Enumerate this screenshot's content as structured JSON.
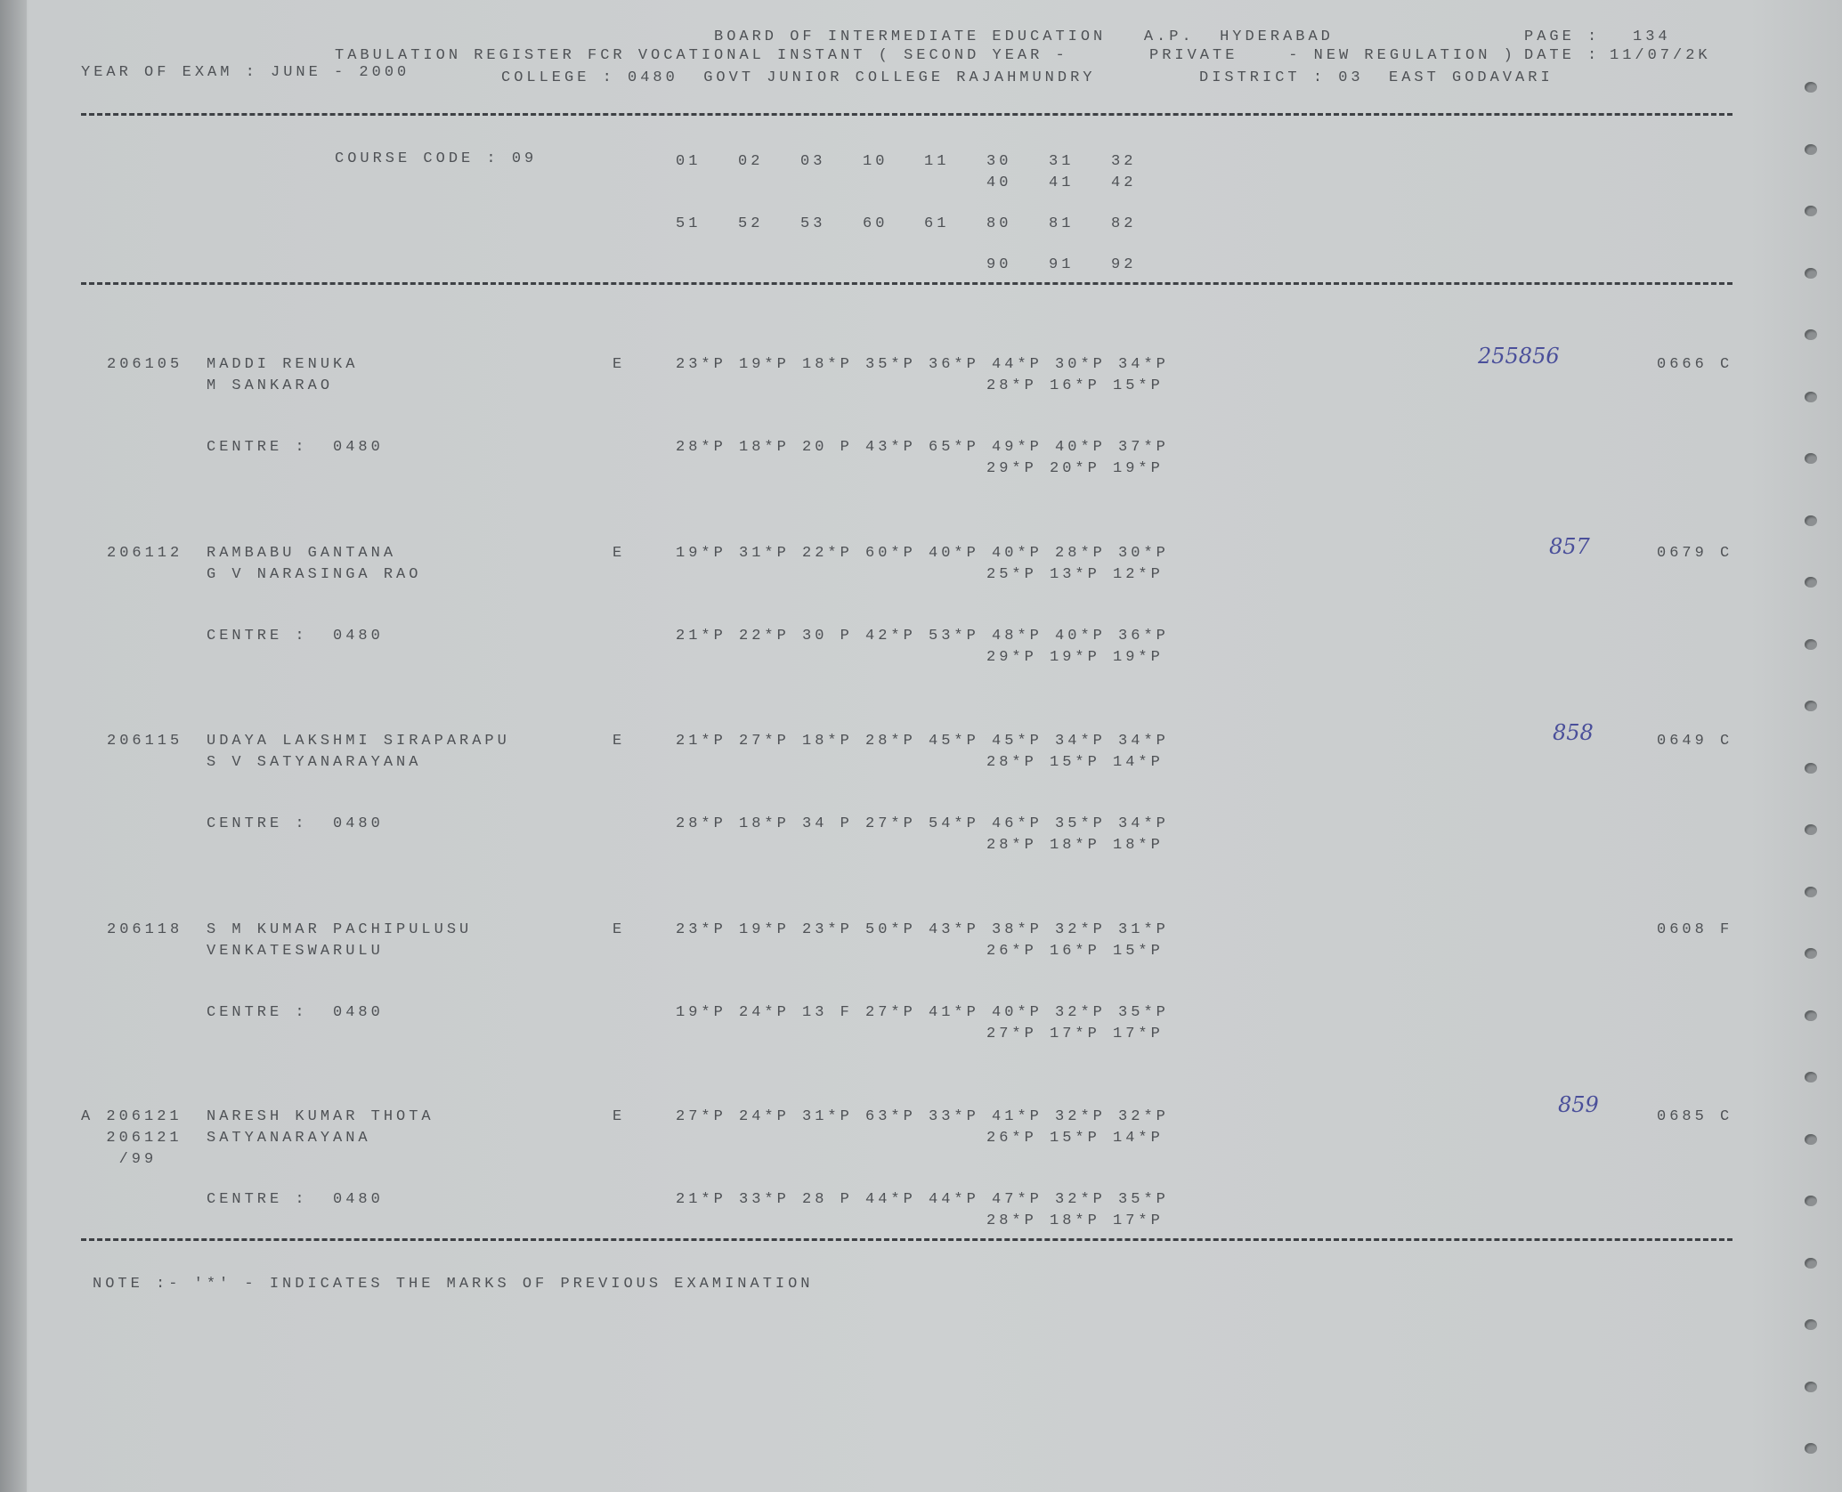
{
  "header": {
    "board": "BOARD OF INTERMEDIATE EDUCATION   A.P.  HYDERABAD",
    "page_label": "PAGE :",
    "page_number": "134",
    "register_title": "TABULATION REGISTER FCR VOCATIONAL INSTANT ( SECOND YEAR -",
    "category": "PRIVATE    - NEW REGULATION )",
    "date_label": "DATE :",
    "date": "11/07/2K",
    "year_of_exam": "YEAR OF EXAM : JUNE - 2000",
    "college": "COLLEGE : 0480  GOVT JUNIOR COLLEGE RAJAHMUNDRY",
    "district": "DISTRICT : 03  EAST GODAVARI"
  },
  "course": {
    "label": "COURSE CODE : 09",
    "rows": [
      {
        "codes": [
          "01",
          "02",
          "03",
          "10",
          "11",
          "30",
          "31",
          "32"
        ],
        "start": 0
      },
      {
        "codes": [
          "40",
          "41",
          "42"
        ],
        "start": 5
      },
      {
        "codes": [
          "51",
          "52",
          "53",
          "60",
          "61",
          "80",
          "81",
          "82"
        ],
        "start": 0
      },
      {
        "codes": [
          "90",
          "91",
          "92"
        ],
        "start": 5
      }
    ]
  },
  "records": [
    {
      "id_lines": [
        "206105"
      ],
      "name": "MADDI RENUKA",
      "father": "M SANKARAO",
      "medium": "E",
      "marks1": "23*P 19*P 18*P 35*P 36*P 44*P 30*P 34*P",
      "marks1b": "28*P 16*P 15*P",
      "centre": "CENTRE :  0480",
      "marks2": "28*P 18*P 20 P 43*P 65*P 49*P 40*P 37*P",
      "marks2b": "29*P 20*P 19*P",
      "handwritten": "255856",
      "total": "0666 C"
    },
    {
      "id_lines": [
        "206112"
      ],
      "name": "RAMBABU GANTANA",
      "father": "G V NARASINGA RAO",
      "medium": "E",
      "marks1": "19*P 31*P 22*P 60*P 40*P 40*P 28*P 30*P",
      "marks1b": "25*P 13*P 12*P",
      "centre": "CENTRE :  0480",
      "marks2": "21*P 22*P 30 P 42*P 53*P 48*P 40*P 36*P",
      "marks2b": "29*P 19*P 19*P",
      "handwritten": "857",
      "total": "0679 C"
    },
    {
      "id_lines": [
        "206115"
      ],
      "name": "UDAYA LAKSHMI SIRAPARAPU",
      "father": "S V SATYANARAYANA",
      "medium": "E",
      "marks1": "21*P 27*P 18*P 28*P 45*P 45*P 34*P 34*P",
      "marks1b": "28*P 15*P 14*P",
      "centre": "CENTRE :  0480",
      "marks2": "28*P 18*P 34 P 27*P 54*P 46*P 35*P 34*P",
      "marks2b": "28*P 18*P 18*P",
      "handwritten": "858",
      "total": "0649 C"
    },
    {
      "id_lines": [
        "206118"
      ],
      "name": "S M KUMAR PACHIPULUSU",
      "father": "VENKATESWARULU",
      "medium": "E",
      "marks1": "23*P 19*P 23*P 50*P 43*P 38*P 32*P 31*P",
      "marks1b": "26*P 16*P 15*P",
      "centre": "CENTRE :  0480",
      "marks2": "19*P 24*P 13 F 27*P 41*P 40*P 32*P 35*P",
      "marks2b": "27*P 17*P 17*P",
      "handwritten": "",
      "total": "0608 F"
    },
    {
      "id_lines": [
        "A 206121",
        "  206121",
        "   /99"
      ],
      "name": "NARESH KUMAR THOTA",
      "father": "SATYANARAYANA",
      "medium": "E",
      "marks1": "27*P 24*P 31*P 63*P 33*P 41*P 32*P 32*P",
      "marks1b": "26*P 15*P 14*P",
      "centre": "CENTRE :  0480",
      "marks2": "21*P 33*P 28 P 44*P 44*P 47*P 32*P 35*P",
      "marks2b": "28*P 18*P 17*P",
      "handwritten": "859",
      "total": "0685 C"
    }
  ],
  "note": "NOTE :- '*' - INDICATES THE MARKS OF PREVIOUS EXAMINATION",
  "colors": {
    "paper": "#cdd0d1",
    "ink": "#4f5256",
    "handwriting": "#4a4f9a"
  }
}
